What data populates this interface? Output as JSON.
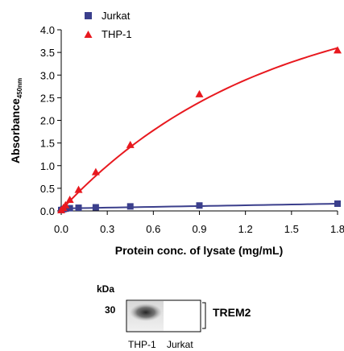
{
  "chart_data": {
    "type": "scatter",
    "xlabel": "Protein conc. of lysate (mg/mL)",
    "ylabel": "Absorbance",
    "ylabel_subscript": "450nm",
    "xlim": [
      0,
      1.8
    ],
    "ylim": [
      0,
      4.0
    ],
    "x_ticks": [
      "0.0",
      "0.3",
      "0.6",
      "0.9",
      "1.2",
      "1.5",
      "1.8"
    ],
    "y_ticks": [
      "0.0",
      "0.5",
      "1.0",
      "1.5",
      "2.0",
      "2.5",
      "3.0",
      "3.5",
      "4.0"
    ],
    "grid": false,
    "legend_position": "top-left",
    "series": [
      {
        "name": "Jurkat",
        "marker": "square",
        "color": "#3b3f8c",
        "x": [
          0.0,
          0.014,
          0.028,
          0.056,
          0.113,
          0.225,
          0.45,
          0.9,
          1.8
        ],
        "y": [
          0.02,
          0.04,
          0.05,
          0.06,
          0.07,
          0.08,
          0.1,
          0.12,
          0.16
        ]
      },
      {
        "name": "THP-1",
        "marker": "triangle",
        "color": "#e8191f",
        "x": [
          0.0,
          0.014,
          0.028,
          0.056,
          0.113,
          0.225,
          0.45,
          0.9,
          1.8
        ],
        "y": [
          0.02,
          0.07,
          0.13,
          0.25,
          0.47,
          0.86,
          1.46,
          2.58,
          3.55
        ]
      }
    ]
  },
  "blot": {
    "kda_label": "kDa",
    "marker_value": "30",
    "lanes": [
      "THP-1",
      "Jurkat"
    ],
    "band_label": "TREM2"
  }
}
